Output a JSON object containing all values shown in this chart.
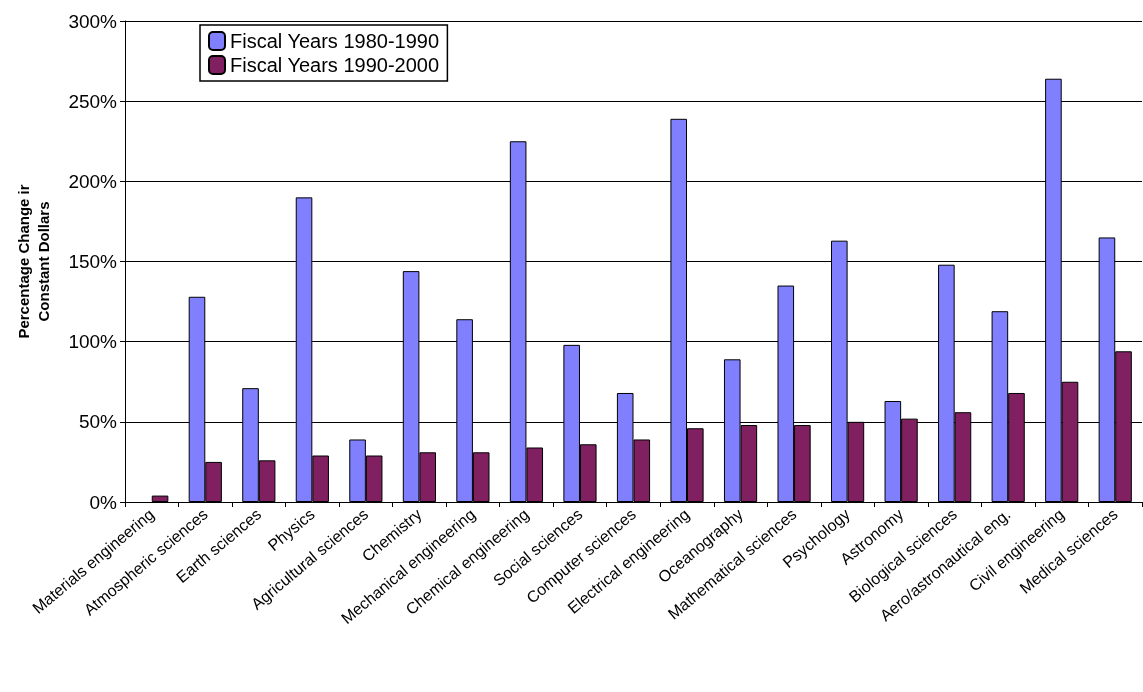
{
  "chart_data": {
    "type": "bar",
    "ylabel": "Percentage Change ir\nConstant Dollars",
    "categories": [
      "Materials engineering",
      "Atmospheric sciences",
      "Earth sciences",
      "Physics",
      "Agricultural sciences",
      "Chemistry",
      "Mechanical engineering",
      "Chemical engineering",
      "Social sciences",
      "Computer sciences",
      "Electrical engineering",
      "Oceanography",
      "Mathematical sciences",
      "Psychology",
      "Astronomy",
      "Biological sciences",
      "Aero/astronautical eng.",
      "Civil engineering",
      "Medical sciences"
    ],
    "series": [
      {
        "name": "Fiscal Years 1980-1990",
        "color": "#8080ff",
        "values": [
          null,
          128,
          71,
          190,
          39,
          144,
          114,
          225,
          98,
          68,
          239,
          89,
          135,
          163,
          63,
          148,
          119,
          264,
          165
        ]
      },
      {
        "name": "Fiscal Years 1990-2000",
        "color": "#802060",
        "values": [
          4,
          25,
          26,
          29,
          29,
          31,
          31,
          34,
          36,
          39,
          46,
          48,
          48,
          50,
          52,
          56,
          68,
          75,
          94
        ]
      }
    ],
    "ylim": [
      0,
      300
    ],
    "yticks": [
      {
        "value": 0,
        "label": "0%"
      },
      {
        "value": 50,
        "label": "50%"
      },
      {
        "value": 100,
        "label": "100%"
      },
      {
        "value": 150,
        "label": "150%"
      },
      {
        "value": 200,
        "label": "200%"
      },
      {
        "value": 250,
        "label": "250%"
      },
      {
        "value": 300,
        "label": "300%"
      }
    ],
    "grid": "y",
    "legend": "top left"
  }
}
